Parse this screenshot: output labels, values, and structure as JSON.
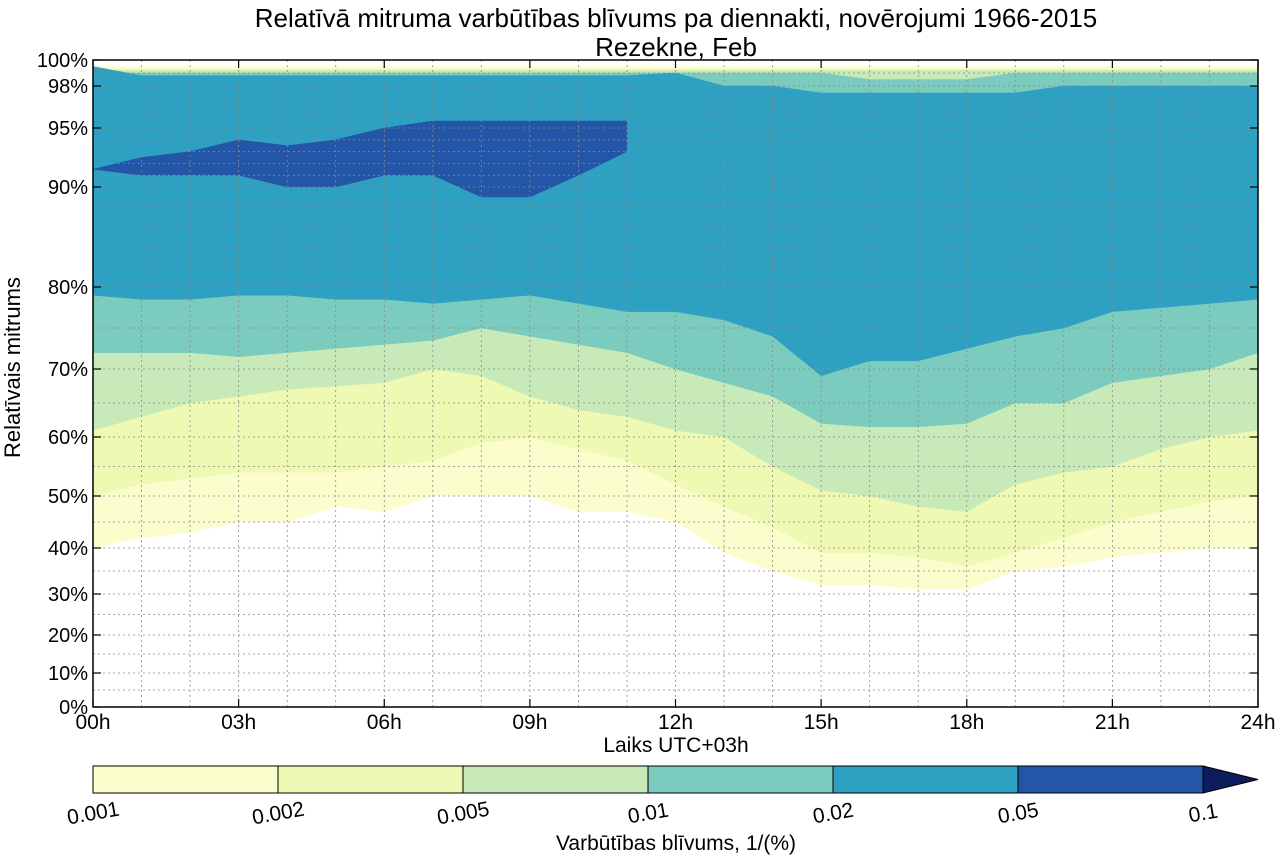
{
  "chart_data": {
    "type": "contourf",
    "title": "Relatīvā mitruma varbūtības blīvums pa diennakti, novērojumi 1966-2015",
    "subtitle": "Rezekne, Feb",
    "xlabel": "Laiks UTC+03h",
    "ylabel": "Relatīvais mitrums",
    "xlim": [
      0,
      24
    ],
    "ylim": [
      0,
      100
    ],
    "y_scale": "nonlinear (stretched toward 100%)",
    "grid": true,
    "x_ticks": [
      "00h",
      "03h",
      "06h",
      "09h",
      "12h",
      "15h",
      "18h",
      "21h",
      "24h"
    ],
    "y_ticks": [
      "0%",
      "10%",
      "20%",
      "30%",
      "40%",
      "50%",
      "60%",
      "70%",
      "80%",
      "90%",
      "95%",
      "98%",
      "100%"
    ],
    "levels": [
      0.001,
      0.002,
      0.005,
      0.01,
      0.02,
      0.05,
      0.1
    ],
    "level_colors": [
      "#fcfdcd",
      "#eef9b3",
      "#c8eab8",
      "#7bcbbe",
      "#2ea1c3",
      "#2356a6",
      "#0d1c5c"
    ],
    "contour_x": [
      0,
      1,
      2,
      3,
      4,
      5,
      6,
      7,
      8,
      9,
      10,
      11,
      12,
      13,
      14,
      15,
      16,
      17,
      18,
      19,
      20,
      21,
      22,
      23,
      24
    ],
    "contours": [
      {
        "level": 0.001,
        "lower": [
          40,
          42,
          43,
          45,
          45,
          48,
          47,
          50,
          50,
          50,
          47,
          47,
          45,
          39,
          35,
          32,
          32,
          31,
          31,
          35,
          36,
          38,
          39,
          40,
          40
        ],
        "upper": [
          99.5,
          99.5,
          99.5,
          99.5,
          99.5,
          99.5,
          99.5,
          99.5,
          99.5,
          99.5,
          99.5,
          99.5,
          99.5,
          99.5,
          99.5,
          99.5,
          99.5,
          99.5,
          99.5,
          99.5,
          99.5,
          99.5,
          99.5,
          99.5,
          99.5
        ]
      },
      {
        "level": 0.002,
        "lower": [
          50,
          52,
          53,
          54,
          54,
          54,
          55,
          56,
          59,
          60,
          58,
          56,
          52,
          48,
          44,
          39,
          39,
          38,
          36,
          39,
          42,
          45,
          47,
          49,
          50
        ],
        "upper": [
          99.3,
          99.3,
          99.3,
          99.3,
          99.3,
          99.3,
          99.3,
          99.3,
          99.3,
          99.3,
          99.3,
          99.3,
          99.3,
          99.3,
          99.3,
          99.3,
          99.3,
          99.3,
          99.3,
          99.3,
          99.3,
          99.3,
          99.3,
          99.3,
          99.3
        ]
      },
      {
        "level": 0.005,
        "lower": [
          61,
          63,
          65,
          66,
          67,
          67.5,
          68,
          70,
          69,
          66,
          64,
          63,
          61,
          60,
          55,
          51,
          50,
          48,
          47,
          52,
          54,
          55,
          58,
          60,
          61
        ],
        "upper": [
          99.2,
          99.2,
          99.2,
          99.2,
          99.2,
          99.2,
          99.2,
          99.2,
          99.2,
          99.2,
          99.2,
          99.2,
          99.2,
          99.2,
          99.2,
          99.2,
          99.2,
          99.2,
          99.2,
          99.2,
          99.2,
          99.2,
          99.2,
          99.2,
          99.2
        ]
      },
      {
        "level": 0.01,
        "lower": [
          72,
          72,
          72,
          71.5,
          72,
          72.5,
          73,
          73.5,
          75,
          74,
          73,
          72,
          70,
          68,
          66,
          62,
          61.5,
          61.5,
          62,
          65,
          65,
          68,
          69,
          70,
          72
        ],
        "upper": [
          99,
          99,
          99,
          99,
          99,
          99,
          99,
          99,
          99,
          99,
          99,
          99,
          99,
          99,
          99,
          99,
          98.5,
          98.5,
          98.5,
          99,
          99,
          99,
          99,
          99,
          99
        ]
      },
      {
        "level": 0.02,
        "lower": [
          79,
          78.5,
          78.5,
          79,
          79,
          78.5,
          78.5,
          78,
          78.5,
          79,
          78,
          77,
          77,
          76,
          74,
          69,
          71,
          71,
          72.5,
          74,
          75,
          77,
          77.5,
          78,
          78.5
        ],
        "upper": [
          99.5,
          98.8,
          98.8,
          98.8,
          98.8,
          98.8,
          98.8,
          98.8,
          98.8,
          98.8,
          98.8,
          98.8,
          99,
          98,
          98,
          97.5,
          97.5,
          97.5,
          97.5,
          97.5,
          98,
          98,
          98,
          98,
          98
        ]
      },
      {
        "level": 0.05,
        "lower": [
          91.5,
          91,
          91,
          91,
          90,
          90,
          91,
          91,
          89,
          89,
          91,
          93,
          null,
          null,
          null,
          null,
          null,
          null,
          null,
          null,
          null,
          null,
          null,
          null,
          null
        ],
        "upper": [
          91.5,
          92.5,
          93,
          94,
          93.5,
          94,
          95,
          95.5,
          95.5,
          95.5,
          95.5,
          95.5,
          null,
          null,
          null,
          null,
          null,
          null,
          null,
          null,
          null,
          null,
          null,
          null,
          null
        ]
      }
    ]
  },
  "colorbar": {
    "ticks": [
      "0.001",
      "0.002",
      "0.005",
      "0.01",
      "0.02",
      "0.05",
      "0.1"
    ],
    "label": "Varbūtības blīvums, 1/(%)",
    "extend": "max"
  }
}
